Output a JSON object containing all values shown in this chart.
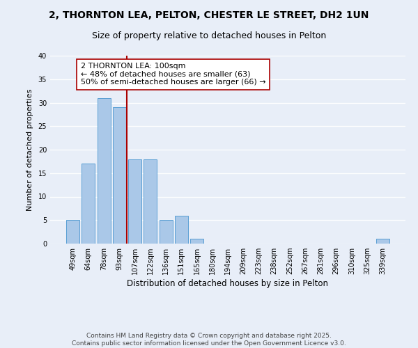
{
  "title": "2, THORNTON LEA, PELTON, CHESTER LE STREET, DH2 1UN",
  "subtitle": "Size of property relative to detached houses in Pelton",
  "xlabel": "Distribution of detached houses by size in Pelton",
  "ylabel": "Number of detached properties",
  "categories": [
    "49sqm",
    "64sqm",
    "78sqm",
    "93sqm",
    "107sqm",
    "122sqm",
    "136sqm",
    "151sqm",
    "165sqm",
    "180sqm",
    "194sqm",
    "209sqm",
    "223sqm",
    "238sqm",
    "252sqm",
    "267sqm",
    "281sqm",
    "296sqm",
    "310sqm",
    "325sqm",
    "339sqm"
  ],
  "values": [
    5,
    17,
    31,
    29,
    18,
    18,
    5,
    6,
    1,
    0,
    0,
    0,
    0,
    0,
    0,
    0,
    0,
    0,
    0,
    0,
    1
  ],
  "bar_color": "#aac8e8",
  "bar_edge_color": "#5a9fd4",
  "vline_x": 3.5,
  "vline_color": "#aa0000",
  "annotation_text": "2 THORNTON LEA: 100sqm\n← 48% of detached houses are smaller (63)\n50% of semi-detached houses are larger (66) →",
  "annotation_box_color": "#ffffff",
  "annotation_box_edge": "#aa0000",
  "ylim": [
    0,
    40
  ],
  "yticks": [
    0,
    5,
    10,
    15,
    20,
    25,
    30,
    35,
    40
  ],
  "background_color": "#e8eef8",
  "footer_text": "Contains HM Land Registry data © Crown copyright and database right 2025.\nContains public sector information licensed under the Open Government Licence v3.0.",
  "title_fontsize": 10,
  "subtitle_fontsize": 9,
  "xlabel_fontsize": 8.5,
  "ylabel_fontsize": 8,
  "tick_fontsize": 7,
  "annotation_fontsize": 8,
  "footer_fontsize": 6.5
}
